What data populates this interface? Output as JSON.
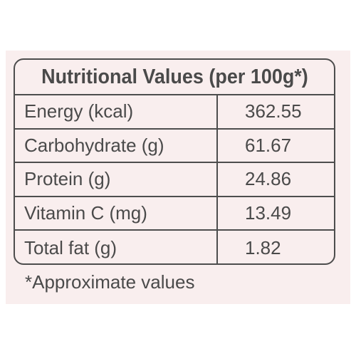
{
  "table": {
    "title": "Nutritional Values (per 100g*)",
    "rows": [
      {
        "name": "Energy (kcal)",
        "value": "362.55"
      },
      {
        "name": "Carbohydrate (g)",
        "value": "61.67"
      },
      {
        "name": "Protein (g)",
        "value": "24.86"
      },
      {
        "name": "Vitamin C (mg)",
        "value": "13.49"
      },
      {
        "name": "Total fat (g)",
        "value": "1.82"
      }
    ]
  },
  "footnote": "*Approximate values",
  "colors": {
    "background": "#f9eeee",
    "text": "#4a4a4a",
    "border": "#4d4d4d"
  }
}
